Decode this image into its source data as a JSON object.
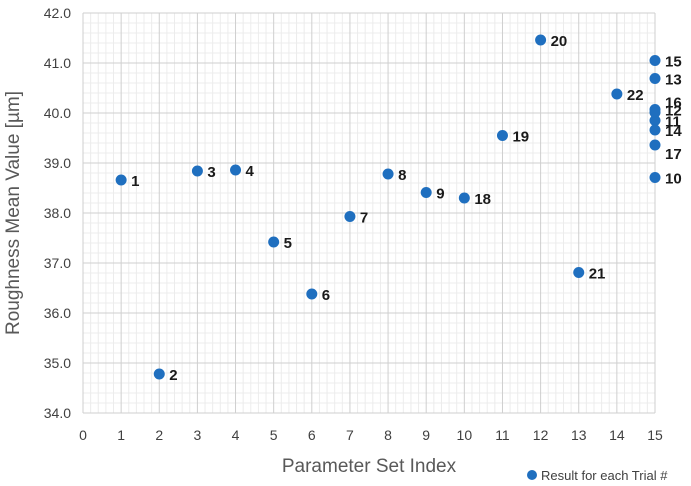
{
  "chart_data": {
    "type": "scatter",
    "xlabel": "Parameter Set Index",
    "ylabel": "Roughness Mean Value [µm]",
    "xlim": [
      0,
      15
    ],
    "ylim": [
      34.0,
      42.0
    ],
    "x_ticks": [
      "0",
      "1",
      "2",
      "3",
      "4",
      "5",
      "6",
      "7",
      "8",
      "9",
      "10",
      "11",
      "12",
      "13",
      "14",
      "15"
    ],
    "y_ticks": [
      "34.0",
      "35.0",
      "36.0",
      "37.0",
      "38.0",
      "39.0",
      "40.0",
      "41.0",
      "42.0"
    ],
    "grid": true,
    "legend_position": "bottom-right",
    "series": [
      {
        "name": "Result for each Trial #",
        "color": "#1f6fbf",
        "points": [
          {
            "label": "1",
            "x": 1,
            "y": 38.66
          },
          {
            "label": "2",
            "x": 2,
            "y": 34.78
          },
          {
            "label": "3",
            "x": 3,
            "y": 38.84
          },
          {
            "label": "4",
            "x": 4,
            "y": 38.86
          },
          {
            "label": "5",
            "x": 5,
            "y": 37.42
          },
          {
            "label": "6",
            "x": 6,
            "y": 36.38
          },
          {
            "label": "7",
            "x": 7,
            "y": 37.93
          },
          {
            "label": "8",
            "x": 8,
            "y": 38.78
          },
          {
            "label": "9",
            "x": 9,
            "y": 38.41
          },
          {
            "label": "10",
            "x": 15,
            "y": 38.71
          },
          {
            "label": "11",
            "x": 15,
            "y": 39.85
          },
          {
            "label": "12",
            "x": 15,
            "y": 40.07
          },
          {
            "label": "13",
            "x": 15,
            "y": 40.69
          },
          {
            "label": "14",
            "x": 15,
            "y": 39.66
          },
          {
            "label": "15",
            "x": 15,
            "y": 41.05
          },
          {
            "label": "16",
            "x": 15,
            "y": 40.01
          },
          {
            "label": "17",
            "x": 15,
            "y": 39.36
          },
          {
            "label": "18",
            "x": 10,
            "y": 38.3
          },
          {
            "label": "19",
            "x": 11,
            "y": 39.55
          },
          {
            "label": "20",
            "x": 12,
            "y": 41.46
          },
          {
            "label": "21",
            "x": 13,
            "y": 36.81
          },
          {
            "label": "22",
            "x": 14,
            "y": 40.38
          }
        ]
      }
    ]
  }
}
